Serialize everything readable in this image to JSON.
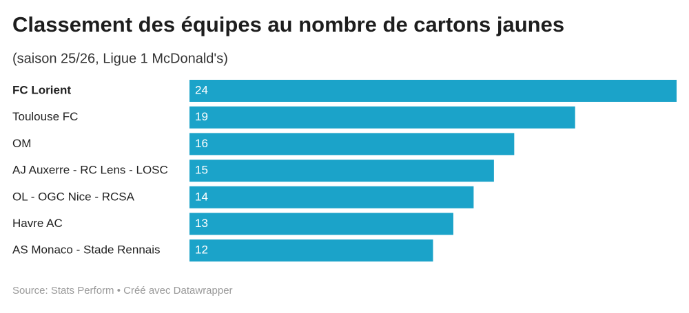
{
  "chart_data": {
    "type": "bar",
    "orientation": "horizontal",
    "title": "Classement des équipes au nombre de cartons jaunes",
    "subtitle": "(saison 25/26, Ligue 1 McDonald's)",
    "categories": [
      "FC Lorient",
      "Toulouse FC",
      "OM",
      "AJ Auxerre - RC Lens - LOSC",
      "OL - OGC Nice - RCSA",
      "Havre AC",
      "AS Monaco - Stade Rennais"
    ],
    "values": [
      24,
      19,
      16,
      15,
      14,
      13,
      12
    ],
    "color": "#1ba3c9",
    "source": "Source: Stats Perform • Créé avec Datawrapper"
  }
}
